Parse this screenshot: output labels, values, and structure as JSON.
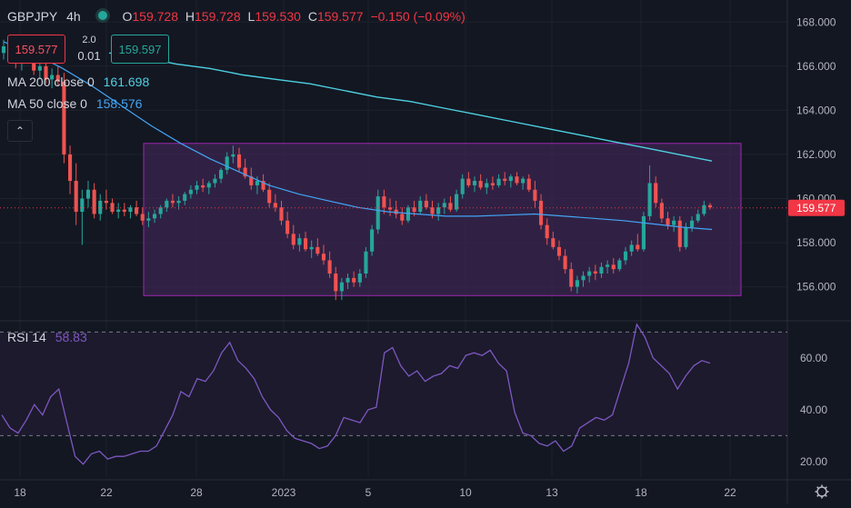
{
  "legend": {
    "symbol": "GBPJPY",
    "timeframe": "4h",
    "open_label": "O",
    "open": "159.728",
    "high_label": "H",
    "high": "159.728",
    "low_label": "L",
    "low": "159.530",
    "close_label": "C",
    "close": "159.577",
    "change": "−0.150 (−0.09%)"
  },
  "trade": {
    "sell": "159.577",
    "buy": "159.597",
    "spread": "2.0",
    "lot": "0.01"
  },
  "indicators": {
    "ma200_name": "MA 200 close 0",
    "ma200_value": "161.698",
    "ma50_name": "MA 50 close 0",
    "ma50_value": "158.576",
    "rsi_name": "RSI 14",
    "rsi_value": "58.83"
  },
  "colors": {
    "background": "#131722",
    "grid": "#1e222d",
    "text": "#b2b5be",
    "up": "#26a69a",
    "down": "#ef5350",
    "ma200": "#4dd0e1",
    "ma50": "#42a5f5",
    "rsi": "#7e57c2",
    "box_fill": "#3b2550",
    "box_stroke": "#9c27b0",
    "price_label": "#f23645"
  },
  "chart_data": [
    {
      "type": "candlestick",
      "symbol": "GBPJPY",
      "interval": "4h",
      "ylim": [
        154.5,
        169.0
      ],
      "yticks": [
        "168.000",
        "166.000",
        "164.000",
        "162.000",
        "160.000",
        "158.000",
        "156.000"
      ],
      "xticks": [
        "18",
        "22",
        "28",
        "2023",
        "5",
        "10",
        "13",
        "18",
        "22"
      ],
      "current_price": "159.577",
      "grid": true,
      "candles": [
        [
          166.6,
          167.2,
          166.3,
          166.9
        ],
        [
          166.9,
          167.4,
          166.6,
          166.7
        ],
        [
          166.7,
          167.0,
          165.9,
          166.2
        ],
        [
          166.2,
          166.8,
          165.8,
          166.5
        ],
        [
          166.5,
          167.0,
          166.2,
          166.4
        ],
        [
          166.4,
          166.9,
          165.6,
          165.8
        ],
        [
          165.8,
          166.3,
          165.4,
          166.0
        ],
        [
          166.0,
          166.4,
          165.2,
          165.4
        ],
        [
          165.4,
          165.9,
          165.0,
          165.6
        ],
        [
          165.6,
          166.0,
          165.1,
          165.3
        ],
        [
          165.3,
          165.7,
          161.6,
          162.0
        ],
        [
          162.0,
          162.4,
          160.2,
          160.8
        ],
        [
          160.8,
          161.6,
          158.8,
          159.4
        ],
        [
          159.4,
          160.4,
          157.9,
          160.0
        ],
        [
          160.0,
          160.8,
          159.6,
          160.4
        ],
        [
          160.4,
          160.7,
          159.1,
          159.3
        ],
        [
          159.3,
          160.2,
          159.0,
          159.9
        ],
        [
          159.9,
          160.4,
          159.5,
          159.8
        ],
        [
          159.8,
          160.0,
          159.3,
          159.4
        ],
        [
          159.4,
          159.8,
          159.1,
          159.5
        ],
        [
          159.5,
          159.8,
          159.2,
          159.4
        ],
        [
          159.4,
          159.7,
          159.1,
          159.6
        ],
        [
          159.6,
          159.9,
          159.2,
          159.3
        ],
        [
          159.3,
          159.6,
          158.8,
          159.0
        ],
        [
          159.0,
          159.4,
          158.7,
          159.1
        ],
        [
          159.1,
          159.5,
          158.9,
          159.3
        ],
        [
          159.3,
          159.7,
          159.1,
          159.6
        ],
        [
          159.6,
          160.0,
          159.4,
          159.9
        ],
        [
          159.9,
          160.2,
          159.6,
          159.8
        ],
        [
          159.8,
          160.1,
          159.5,
          159.9
        ],
        [
          159.9,
          160.3,
          159.7,
          160.2
        ],
        [
          160.2,
          160.6,
          160.0,
          160.4
        ],
        [
          160.4,
          160.8,
          160.2,
          160.6
        ],
        [
          160.6,
          160.9,
          160.3,
          160.5
        ],
        [
          160.5,
          160.8,
          160.2,
          160.7
        ],
        [
          160.7,
          161.1,
          160.5,
          160.9
        ],
        [
          160.9,
          161.4,
          160.7,
          161.3
        ],
        [
          161.3,
          162.1,
          161.1,
          161.9
        ],
        [
          161.9,
          162.4,
          161.6,
          162.0
        ],
        [
          162.0,
          162.3,
          161.2,
          161.4
        ],
        [
          161.4,
          161.8,
          160.9,
          161.0
        ],
        [
          161.0,
          161.4,
          160.4,
          160.6
        ],
        [
          160.6,
          161.0,
          160.2,
          160.8
        ],
        [
          160.8,
          161.1,
          160.3,
          160.4
        ],
        [
          160.4,
          160.7,
          159.6,
          159.8
        ],
        [
          159.8,
          160.2,
          159.4,
          159.6
        ],
        [
          159.6,
          159.9,
          158.8,
          159.0
        ],
        [
          159.0,
          159.4,
          158.2,
          158.4
        ],
        [
          158.4,
          158.8,
          157.7,
          157.9
        ],
        [
          157.9,
          158.4,
          157.6,
          158.2
        ],
        [
          158.2,
          158.5,
          157.6,
          157.7
        ],
        [
          157.7,
          158.1,
          157.3,
          157.8
        ],
        [
          157.8,
          158.2,
          157.4,
          157.5
        ],
        [
          157.5,
          157.9,
          157.0,
          157.2
        ],
        [
          157.2,
          157.6,
          156.4,
          156.6
        ],
        [
          156.6,
          156.9,
          155.4,
          155.8
        ],
        [
          155.8,
          156.4,
          155.4,
          156.2
        ],
        [
          156.2,
          156.6,
          155.9,
          156.4
        ],
        [
          156.4,
          156.7,
          156.0,
          156.2
        ],
        [
          156.2,
          156.8,
          156.0,
          156.6
        ],
        [
          156.6,
          157.8,
          156.4,
          157.6
        ],
        [
          157.6,
          158.8,
          157.4,
          158.6
        ],
        [
          158.6,
          160.4,
          158.4,
          160.1
        ],
        [
          160.1,
          160.4,
          159.3,
          159.6
        ],
        [
          159.6,
          160.0,
          159.2,
          159.5
        ],
        [
          159.5,
          159.9,
          159.1,
          159.3
        ],
        [
          159.3,
          159.6,
          158.8,
          159.0
        ],
        [
          159.0,
          159.7,
          158.9,
          159.6
        ],
        [
          159.6,
          159.9,
          159.2,
          159.4
        ],
        [
          159.4,
          160.1,
          159.3,
          159.9
        ],
        [
          159.9,
          160.2,
          159.5,
          159.6
        ],
        [
          159.6,
          159.9,
          159.1,
          159.3
        ],
        [
          159.3,
          159.8,
          159.0,
          159.6
        ],
        [
          159.6,
          160.0,
          159.3,
          159.8
        ],
        [
          159.8,
          160.1,
          159.4,
          159.5
        ],
        [
          159.5,
          160.4,
          159.4,
          160.2
        ],
        [
          160.2,
          161.1,
          160.0,
          160.9
        ],
        [
          160.9,
          161.2,
          160.5,
          160.6
        ],
        [
          160.6,
          161.0,
          160.3,
          160.8
        ],
        [
          160.8,
          161.1,
          160.4,
          160.5
        ],
        [
          160.5,
          160.9,
          160.2,
          160.7
        ],
        [
          160.7,
          161.0,
          160.4,
          160.6
        ],
        [
          160.6,
          161.1,
          160.5,
          160.9
        ],
        [
          160.9,
          161.2,
          160.6,
          160.8
        ],
        [
          160.8,
          161.1,
          160.5,
          161.0
        ],
        [
          161.0,
          161.2,
          160.6,
          160.7
        ],
        [
          160.7,
          161.0,
          160.4,
          160.9
        ],
        [
          160.9,
          161.1,
          160.3,
          160.4
        ],
        [
          160.4,
          160.8,
          159.6,
          159.9
        ],
        [
          159.9,
          160.2,
          158.6,
          158.8
        ],
        [
          158.8,
          159.1,
          157.9,
          158.2
        ],
        [
          158.2,
          158.5,
          157.7,
          157.8
        ],
        [
          157.8,
          158.1,
          157.2,
          157.4
        ],
        [
          157.4,
          157.7,
          156.6,
          156.8
        ],
        [
          156.8,
          157.1,
          155.8,
          156.0
        ],
        [
          156.0,
          156.5,
          155.7,
          156.3
        ],
        [
          156.3,
          156.7,
          156.0,
          156.5
        ],
        [
          156.5,
          156.9,
          156.2,
          156.7
        ],
        [
          156.7,
          157.0,
          156.3,
          156.6
        ],
        [
          156.6,
          157.1,
          156.4,
          156.9
        ],
        [
          156.9,
          157.2,
          156.6,
          157.0
        ],
        [
          157.0,
          157.3,
          156.6,
          156.8
        ],
        [
          156.8,
          157.3,
          156.7,
          157.2
        ],
        [
          157.2,
          157.8,
          157.0,
          157.6
        ],
        [
          157.6,
          158.1,
          157.4,
          157.9
        ],
        [
          157.9,
          158.4,
          157.6,
          157.7
        ],
        [
          157.7,
          159.4,
          157.6,
          159.2
        ],
        [
          159.2,
          161.5,
          159.0,
          160.7
        ],
        [
          160.7,
          161.0,
          159.6,
          159.8
        ],
        [
          159.8,
          160.0,
          158.9,
          159.1
        ],
        [
          159.1,
          159.4,
          158.6,
          158.8
        ],
        [
          158.8,
          159.2,
          158.5,
          159.0
        ],
        [
          159.0,
          159.2,
          157.6,
          157.8
        ],
        [
          157.8,
          158.9,
          157.7,
          158.7
        ],
        [
          158.7,
          159.2,
          158.5,
          159.0
        ],
        [
          159.0,
          159.5,
          158.9,
          159.3
        ],
        [
          159.3,
          159.9,
          159.2,
          159.7
        ],
        [
          159.7,
          159.8,
          159.5,
          159.6
        ]
      ],
      "ma200": [
        166.6,
        166.4,
        166.1,
        165.9,
        165.6,
        165.4,
        165.2,
        164.9,
        164.6,
        164.4,
        164.1,
        163.8,
        163.5,
        163.2,
        162.9,
        162.6,
        162.3,
        162.0,
        161.7
      ],
      "ma50": [
        167.1,
        166.6,
        165.9,
        165.1,
        164.2,
        163.3,
        162.5,
        161.8,
        161.2,
        160.6,
        160.2,
        159.9,
        159.6,
        159.4,
        159.3,
        159.2,
        159.2,
        159.25,
        159.3,
        159.2,
        159.1,
        159.0,
        158.85,
        158.7,
        158.6
      ],
      "range_box": {
        "high": 162.5,
        "low": 155.6
      }
    },
    {
      "type": "line",
      "name": "RSI 14",
      "ylim": [
        14,
        74
      ],
      "yticks": [
        "60.00",
        "40.00",
        "20.00"
      ],
      "levels": [
        70,
        30
      ],
      "values": [
        38,
        33,
        31,
        36,
        42,
        38,
        45,
        48,
        35,
        22,
        19,
        23,
        24,
        21,
        22,
        22,
        23,
        24,
        24,
        26,
        32,
        38,
        47,
        45,
        52,
        51,
        55,
        62,
        66,
        59,
        56,
        52,
        45,
        40,
        37,
        32,
        29,
        28,
        27,
        25,
        26,
        30,
        37,
        36,
        35,
        40,
        41,
        62,
        64,
        57,
        53,
        55,
        51,
        53,
        54,
        57,
        56,
        61,
        62,
        61,
        63,
        58,
        55,
        39,
        31,
        30,
        27,
        26,
        28,
        24,
        26,
        33,
        35,
        37,
        36,
        38,
        48,
        58,
        73,
        68,
        60,
        57,
        54,
        48,
        53,
        57,
        59,
        58
      ]
    }
  ]
}
